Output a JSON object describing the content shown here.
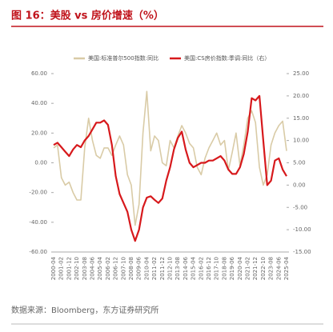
{
  "chart_data": {
    "type": "line",
    "title": "图 16：美股 vs 房价增速（%）",
    "source": "数据来源：Bloomberg，东方证券研究所",
    "categories": [
      "2000-04",
      null,
      "2001-02",
      null,
      "2001-12",
      null,
      "2002-10",
      null,
      "2003-08",
      null,
      "2004-06",
      null,
      "2005-04",
      null,
      "2006-02",
      null,
      "2006-12",
      null,
      "2007-10",
      null,
      "2008-08",
      null,
      "2009-06",
      null,
      "2010-04",
      null,
      "2011-02",
      null,
      "2011-12",
      null,
      "2012-10",
      null,
      "2013-08",
      null,
      "2014-06",
      null,
      "2015-04",
      null,
      "2016-02",
      null,
      "2016-12",
      null,
      "2017-10",
      null,
      "2018-08",
      null,
      "2019-06",
      null,
      "2020-04",
      null,
      "2021-02",
      null,
      "2021-12",
      null,
      "2022-10",
      null,
      "2023-08",
      null,
      "2024-06",
      null,
      "2025-04"
    ],
    "series": [
      {
        "name": "美国:标准普尔500指数:同比",
        "color": "#d9cba6",
        "axis": "y",
        "values": [
          10,
          12,
          -10,
          -15,
          -13,
          -20,
          -25,
          -25,
          10,
          30,
          15,
          5,
          3,
          10,
          10,
          5,
          12,
          18,
          12,
          -8,
          -15,
          -42,
          -28,
          20,
          48,
          8,
          18,
          15,
          0,
          -2,
          15,
          10,
          18,
          25,
          20,
          13,
          10,
          -3,
          -8,
          3,
          10,
          15,
          20,
          12,
          15,
          -5,
          7,
          20,
          -2,
          12,
          30,
          35,
          27,
          -3,
          -15,
          -8,
          12,
          20,
          25,
          28,
          8
        ]
      },
      {
        "name": "美国:CS房价指数:季调:同比（右）",
        "color": "#d7191c",
        "axis": "y2",
        "values": [
          9,
          9.5,
          8.5,
          7.5,
          6.5,
          8,
          9,
          8.5,
          10,
          11,
          12.5,
          14,
          14,
          14.5,
          13.5,
          9,
          2,
          -2,
          -4,
          -6,
          -10,
          -12.5,
          -10,
          -5,
          -2.8,
          -2.5,
          -3.3,
          -4,
          -3,
          1,
          4,
          8,
          10.6,
          12,
          8,
          5,
          4,
          4.5,
          5,
          5,
          5.5,
          5.5,
          6,
          6.5,
          5.5,
          3.5,
          2.5,
          2.5,
          4,
          7,
          12,
          19.5,
          19,
          20,
          10,
          0,
          1,
          5.5,
          6,
          3.5,
          2
        ]
      }
    ],
    "ylim": [
      -60,
      60
    ],
    "yticks": [
      {
        "value": -60,
        "label": "-60.00"
      },
      {
        "value": -40,
        "label": "-40.00"
      },
      {
        "value": -20,
        "label": "-20.00"
      },
      {
        "value": 0,
        "label": "0.00"
      },
      {
        "value": 20,
        "label": "20.00"
      },
      {
        "value": 40,
        "label": "40.00"
      },
      {
        "value": 60,
        "label": "60.00"
      }
    ],
    "y2lim": [
      -15,
      25
    ],
    "y2ticks": [
      {
        "value": -15,
        "label": "-15.00"
      },
      {
        "value": -10,
        "label": "-10.00"
      },
      {
        "value": -5,
        "label": "-5.00"
      },
      {
        "value": 0,
        "label": "0.00"
      },
      {
        "value": 5,
        "label": "5.00"
      },
      {
        "value": 10,
        "label": "10.00"
      },
      {
        "value": 15,
        "label": "15.00"
      },
      {
        "value": 20,
        "label": "20.00"
      },
      {
        "value": 25,
        "label": "25.00"
      }
    ],
    "grid": false
  }
}
